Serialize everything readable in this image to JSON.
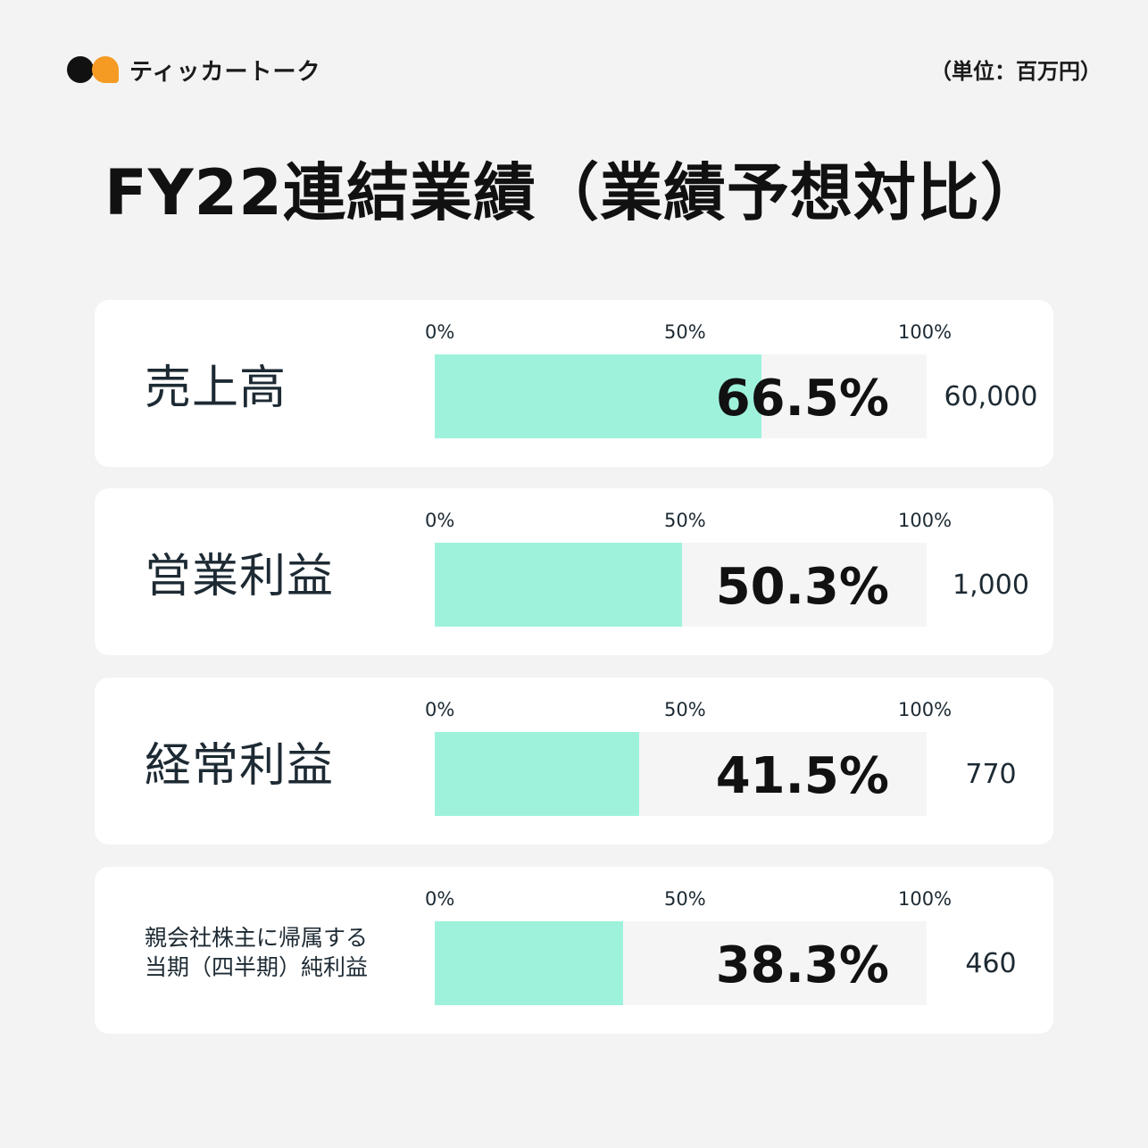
{
  "brand": {
    "name": "ティッカートーク",
    "colors": {
      "dark": "#111111",
      "accent": "#f59a23"
    }
  },
  "unit_label": "（単位：百万円）",
  "title": "FY22連結業績（業績予想対比）",
  "bar_color": "#9ef2dc",
  "chart_data": {
    "type": "bar",
    "orientation": "horizontal",
    "title": "FY22連結業績（業績予想対比）",
    "xlim": [
      0,
      100
    ],
    "x_tick_labels": [
      "0%",
      "50%",
      "100%"
    ],
    "rows": [
      {
        "label": "売上高",
        "value": 66.5,
        "value_label": "66.5%",
        "target": "60,000"
      },
      {
        "label": "営業利益",
        "value": 50.3,
        "value_label": "50.3%",
        "target": "1,000"
      },
      {
        "label": "経常利益",
        "value": 41.5,
        "value_label": "41.5%",
        "target": "770"
      },
      {
        "label": "親会社株主に帰属する\n当期（四半期）純利益",
        "value": 38.3,
        "value_label": "38.3%",
        "target": "460"
      }
    ]
  }
}
